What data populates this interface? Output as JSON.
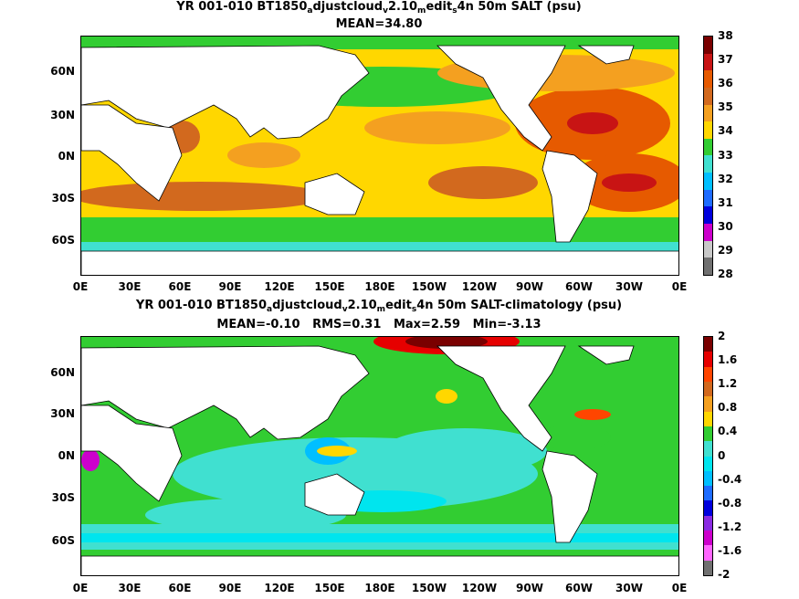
{
  "panels": [
    {
      "title_line1": {
        "pre": "YR 001-010 BT1850",
        "s1": "a",
        "mid1": "djustcloud",
        "s2": "v",
        "mid2": "2.10",
        "s3": "m",
        "mid3": "edit",
        "s4": "s",
        "post": "4n 50m SALT (psu)"
      },
      "title_line2": "MEAN=34.80",
      "colorbar": {
        "labels": [
          "38",
          "37",
          "36",
          "35",
          "34",
          "33",
          "32",
          "31",
          "30",
          "29",
          "28"
        ],
        "colors": [
          "#7a0000",
          "#c81414",
          "#e65a00",
          "#d2691e",
          "#f4a020",
          "#ffd700",
          "#32cd32",
          "#40e0d0",
          "#00bfff",
          "#1e6cff",
          "#0000dd",
          "#cc00cc",
          "#c8c8c8",
          "#707070"
        ]
      }
    },
    {
      "title_line1": {
        "pre": "YR 001-010 BT1850",
        "s1": "a",
        "mid1": "djustcloud",
        "s2": "v",
        "mid2": "2.10",
        "s3": "m",
        "mid3": "edit",
        "s4": "s",
        "post": "4n 50m SALT-climatology (psu)"
      },
      "title_line2": "MEAN=-0.10   RMS=0.31   Max=2.59   Min=-3.13",
      "colorbar": {
        "labels": [
          "2",
          "1.6",
          "1.2",
          "0.8",
          "0.4",
          "0",
          "-0.4",
          "-0.8",
          "-1.2",
          "-1.6",
          "-2"
        ],
        "colors": [
          "#7a0000",
          "#e60000",
          "#ff4500",
          "#d2691e",
          "#f4a020",
          "#ffd700",
          "#32cd32",
          "#40e0d0",
          "#00e5ee",
          "#00bfff",
          "#1e6cff",
          "#0000dd",
          "#8a2be2",
          "#cc00cc",
          "#ff66ff",
          "#707070"
        ]
      }
    }
  ],
  "axes": {
    "y_ticks": [
      "60N",
      "30N",
      "0N",
      "30S",
      "60S"
    ],
    "x_ticks": [
      "0E",
      "30E",
      "60E",
      "90E",
      "120E",
      "150E",
      "180E",
      "150W",
      "120W",
      "90W",
      "60W",
      "30W",
      "0E"
    ]
  }
}
